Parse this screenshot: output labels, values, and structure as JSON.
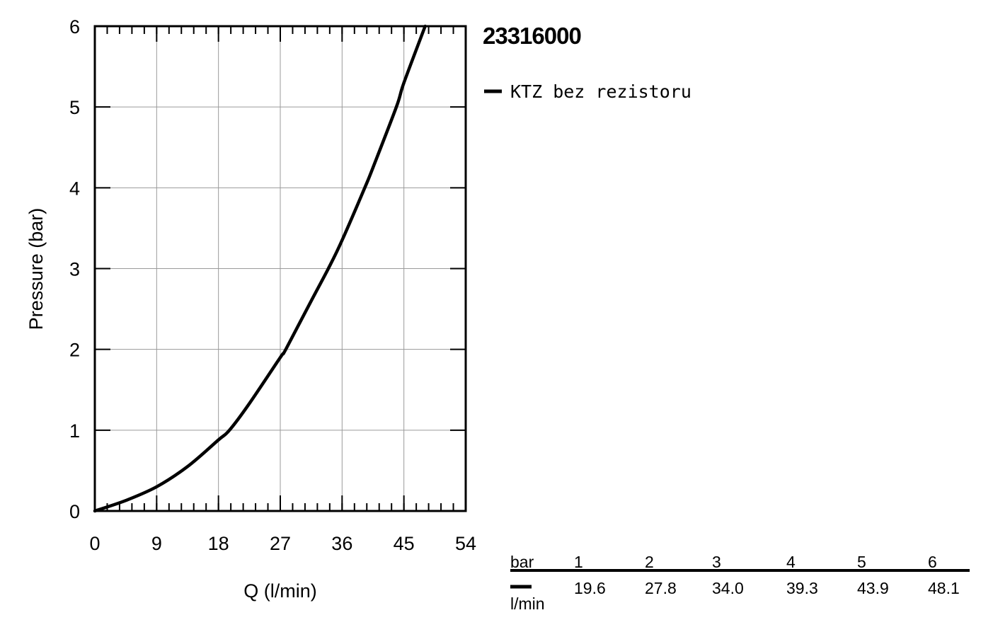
{
  "chart_data": {
    "type": "line",
    "title": "23316000",
    "xlabel": "Q (l/min)",
    "ylabel": "Pressure (bar)",
    "xlim": [
      0,
      54
    ],
    "ylim": [
      0,
      6
    ],
    "xticks": [
      "0",
      "9",
      "18",
      "27",
      "36",
      "45",
      "54"
    ],
    "yticks": [
      "0",
      "1",
      "2",
      "3",
      "4",
      "5",
      "6"
    ],
    "grid": true,
    "legend_position": "right",
    "series": [
      {
        "name": "KTZ bez rezistoru",
        "color": "#000000",
        "x": [
          0,
          4.5,
          9,
          13.5,
          18,
          19.6,
          22.5,
          27,
          27.8,
          31.5,
          34.0,
          36,
          39.3,
          40.5,
          43.9,
          45,
          48.1
        ],
        "y": [
          0,
          0.13,
          0.3,
          0.55,
          0.88,
          1.0,
          1.33,
          1.9,
          2.0,
          2.6,
          3.0,
          3.35,
          4.0,
          4.25,
          5.0,
          5.3,
          6.0
        ]
      }
    ]
  },
  "table": {
    "row_header": "bar",
    "unit_label": "l/min",
    "columns": [
      "1",
      "2",
      "3",
      "4",
      "5",
      "6"
    ],
    "values": [
      "19.6",
      "27.8",
      "34.0",
      "39.3",
      "43.9",
      "48.1"
    ]
  }
}
